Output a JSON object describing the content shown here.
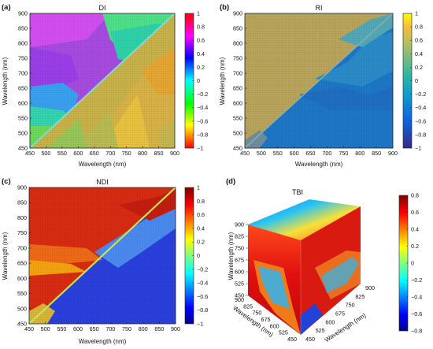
{
  "chart_data": [
    {
      "panel": "(a)",
      "title": "DI",
      "type": "heatmap",
      "xlabel": "Wavelength (nm)",
      "ylabel": "Wavelength (nm)",
      "xlim": [
        450,
        900
      ],
      "ylim": [
        450,
        900
      ],
      "xticks": [
        450,
        500,
        550,
        600,
        650,
        700,
        750,
        800,
        850,
        900
      ],
      "yticks": [
        450,
        500,
        550,
        600,
        650,
        700,
        750,
        800,
        850,
        900
      ],
      "colorbar": {
        "min": -1,
        "max": 1,
        "ticks": [
          "1",
          "0.8",
          "0.6",
          "0.4",
          "0.2",
          "0",
          "−0.2",
          "−0.4",
          "−0.6",
          "−0.8",
          "−1"
        ],
        "colormap": "hsv"
      }
    },
    {
      "panel": "(b)",
      "title": "RI",
      "type": "heatmap",
      "xlabel": "Wavelength (nm)",
      "ylabel": "Wavelength (nm)",
      "xlim": [
        450,
        900
      ],
      "ylim": [
        450,
        900
      ],
      "xticks": [
        450,
        500,
        550,
        600,
        650,
        700,
        750,
        800,
        850,
        900
      ],
      "yticks": [
        450,
        500,
        550,
        600,
        650,
        700,
        750,
        800,
        850,
        900
      ],
      "colorbar": {
        "min": -1,
        "max": 1,
        "ticks": [
          "1",
          "0.8",
          "0.6",
          "0.4",
          "0.2",
          "0",
          "−0.2",
          "−0.4",
          "−0.6",
          "−0.8",
          "−1"
        ],
        "colormap": "parula"
      }
    },
    {
      "panel": "(c)",
      "title": "NDI",
      "type": "heatmap",
      "xlabel": "Wavelength (nm)",
      "ylabel": "Wavelength (nm)",
      "xlim": [
        450,
        900
      ],
      "ylim": [
        450,
        900
      ],
      "xticks": [
        450,
        500,
        550,
        600,
        650,
        700,
        750,
        800,
        850,
        900
      ],
      "yticks": [
        450,
        500,
        550,
        600,
        650,
        700,
        750,
        800,
        850,
        900
      ],
      "colorbar": {
        "min": -1,
        "max": 1,
        "ticks": [
          "1",
          "0.8",
          "0.6",
          "0.4",
          "0.2",
          "0",
          "−0.2",
          "−0.4",
          "−0.6",
          "−0.8",
          "−1"
        ],
        "colormap": "jet"
      }
    },
    {
      "panel": "(d)",
      "title": "TBI",
      "type": "heatmap",
      "subtype": "3d-cube",
      "axes": {
        "vertical": {
          "label": "Wavelength (nm)",
          "ticks": [
            450,
            525,
            600,
            675,
            750,
            825,
            900
          ]
        },
        "left_depth": {
          "label": "Wavelength (nm)",
          "ticks": [
            450,
            525,
            600,
            675,
            750,
            825,
            900
          ]
        },
        "right_depth": {
          "label": "Wavelength (nm)",
          "ticks": [
            450,
            525,
            600,
            675,
            750,
            825,
            900
          ]
        }
      },
      "colorbar": {
        "min": -0.8,
        "max": 0.8,
        "ticks": [
          "0.8",
          "0.6",
          "0.4",
          "0.2",
          "0",
          "−0.2",
          "−0.4",
          "−0.6",
          "−0.8"
        ],
        "colormap": "jet"
      }
    }
  ]
}
